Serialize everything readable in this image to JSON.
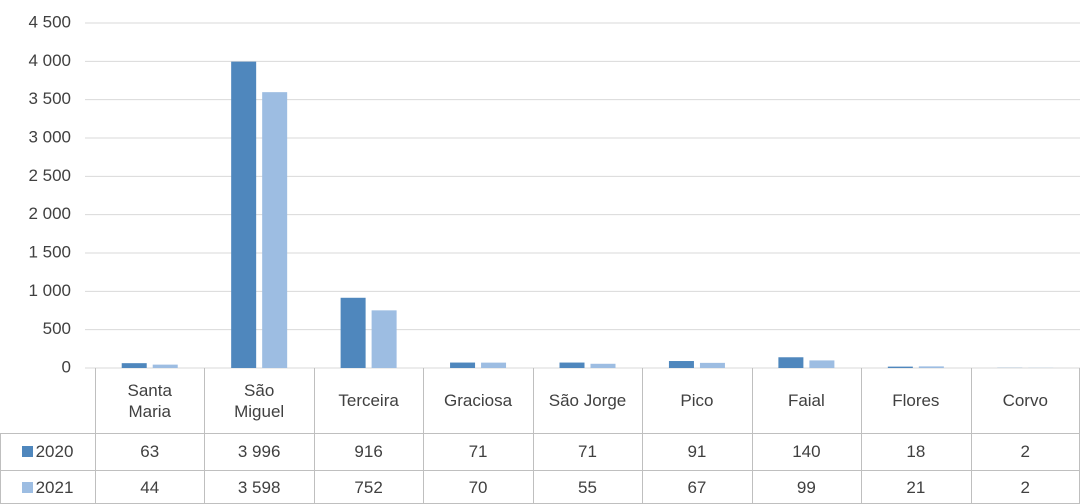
{
  "chart_data": {
    "type": "bar",
    "categories": [
      "Santa Maria",
      "São Miguel",
      "Terceira",
      "Graciosa",
      "São Jorge",
      "Pico",
      "Faial",
      "Flores",
      "Corvo"
    ],
    "series": [
      {
        "name": "2020",
        "color": "#4f87bd",
        "values": [
          63,
          3996,
          916,
          71,
          71,
          91,
          140,
          18,
          2
        ],
        "value_labels": [
          "63",
          "3 996",
          "916",
          "71",
          "71",
          "91",
          "140",
          "18",
          "2"
        ]
      },
      {
        "name": "2021",
        "color": "#9dbde2",
        "values": [
          44,
          3598,
          752,
          70,
          55,
          67,
          99,
          21,
          2
        ],
        "value_labels": [
          "44",
          "3 598",
          "752",
          "70",
          "55",
          "67",
          "99",
          "21",
          "2"
        ]
      }
    ],
    "ylim": [
      0,
      4500
    ],
    "yticks": [
      0,
      500,
      {
        "value": 1000,
        "label": "1 000"
      },
      {
        "value": 1500,
        "label": "1 500"
      },
      {
        "value": 2000,
        "label": "2 000"
      },
      {
        "value": 2500,
        "label": "2 500"
      },
      {
        "value": 3000,
        "label": "3 000"
      },
      {
        "value": 3500,
        "label": "3 500"
      },
      {
        "value": 4000,
        "label": "4 000"
      },
      {
        "value": 4500,
        "label": "4 500"
      }
    ],
    "grid": true,
    "data_table": true
  }
}
